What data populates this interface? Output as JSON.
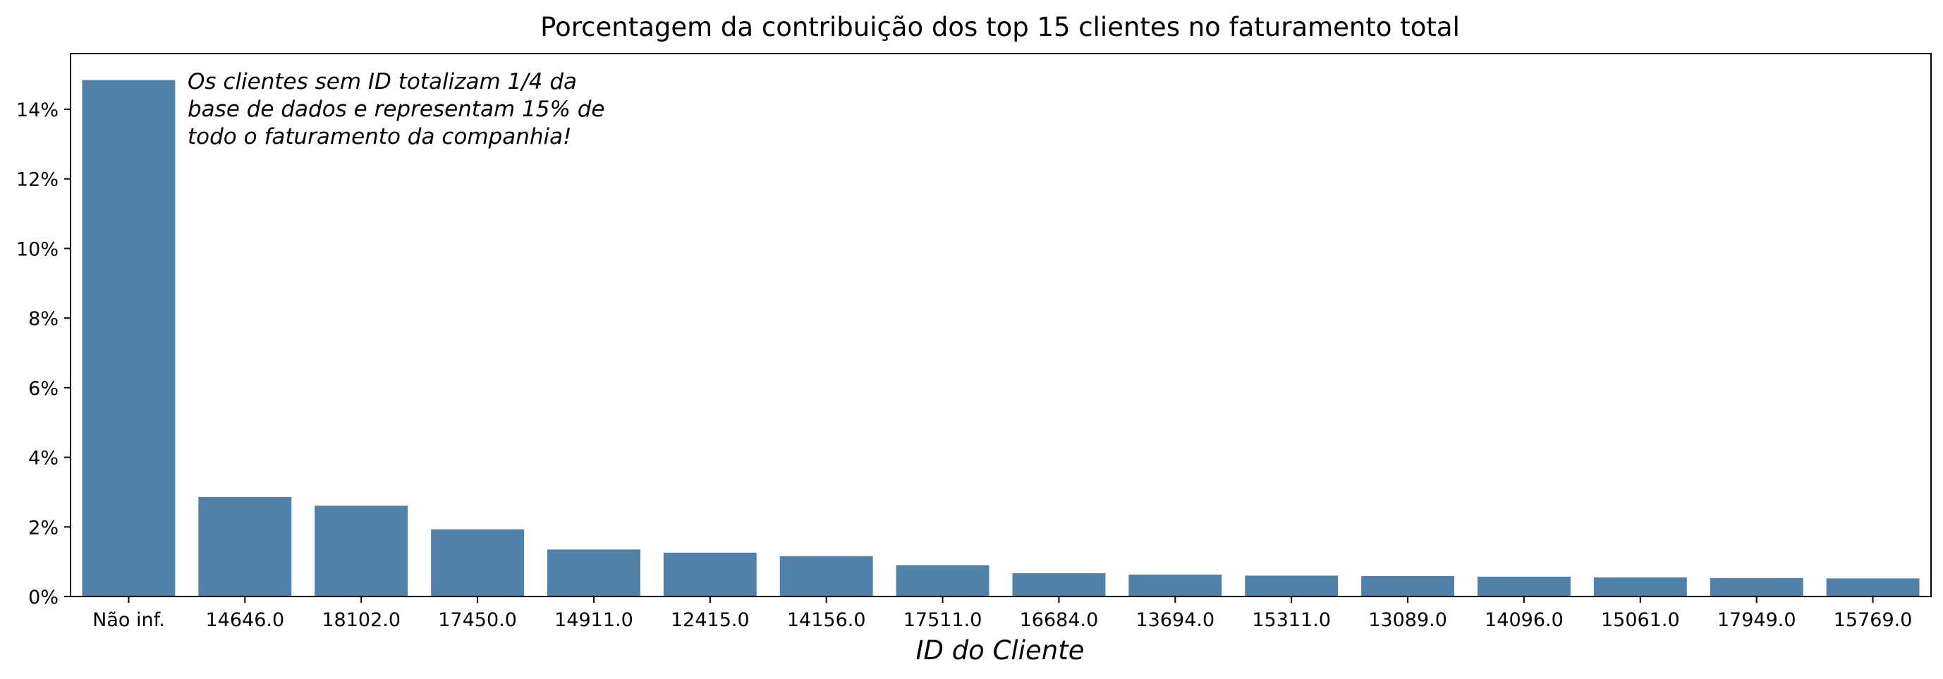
{
  "chart_data": {
    "type": "bar",
    "title": "Porcentagem da contribuição dos top 15 clientes no faturamento total",
    "xlabel": "ID do Cliente",
    "ylabel": "",
    "categories": [
      "Não inf.",
      "14646.0",
      "18102.0",
      "17450.0",
      "14911.0",
      "12415.0",
      "14156.0",
      "17511.0",
      "16684.0",
      "13694.0",
      "15311.0",
      "13089.0",
      "14096.0",
      "15061.0",
      "17949.0",
      "15769.0"
    ],
    "values": [
      14.84,
      2.86,
      2.61,
      1.93,
      1.35,
      1.26,
      1.16,
      0.9,
      0.67,
      0.63,
      0.6,
      0.59,
      0.57,
      0.55,
      0.53,
      0.52
    ],
    "ylim": [
      0,
      15.6
    ],
    "yticks": [
      0,
      2,
      4,
      6,
      8,
      10,
      12,
      14
    ],
    "ytick_labels": [
      "0%",
      "2%",
      "4%",
      "6%",
      "8%",
      "10%",
      "12%",
      "14%"
    ],
    "y_unit": "%",
    "bar_color": "#4f81a9",
    "grid": false,
    "annotation": {
      "lines": [
        "Os clientes sem ID totalizam 1/4 da",
        "base de dados e representam 15% de",
        "todo o faturamento da companhia!"
      ]
    }
  }
}
